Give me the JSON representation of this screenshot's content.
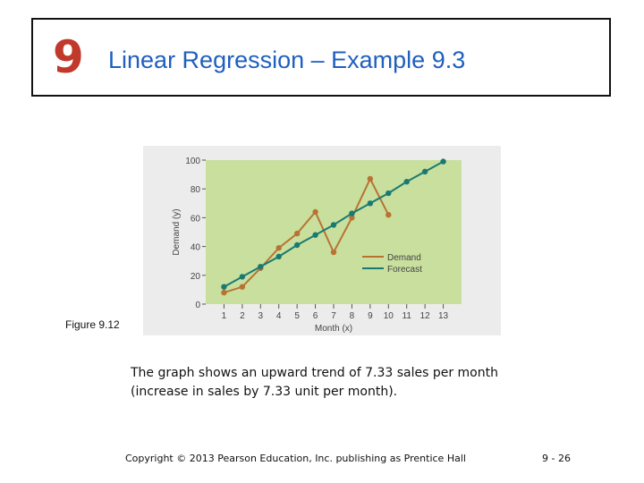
{
  "header": {
    "chapter_number": "9",
    "title": "Linear Regression – Example 9.3",
    "chapter_color": "#c0392b",
    "title_color": "#1f5fbf"
  },
  "figure_label": "Figure 9.12",
  "caption": {
    "line1": "The graph shows an upward trend of 7.33 sales per month",
    "line2": "(increase in sales by 7.33 unit per month)."
  },
  "footer": {
    "copyright": "Copyright © 2013 Pearson Education, Inc. publishing as Prentice Hall",
    "page_number": "9 - 26"
  },
  "chart_data": {
    "type": "line",
    "xlabel": "Month (x)",
    "ylabel": "Demand (y)",
    "x": [
      1,
      2,
      3,
      4,
      5,
      6,
      7,
      8,
      9,
      10,
      11,
      12,
      13
    ],
    "xlim": [
      0,
      14
    ],
    "ylim": [
      0,
      100
    ],
    "yticks": [
      0,
      20,
      40,
      60,
      80,
      100
    ],
    "grid": false,
    "legend_position": "right",
    "background": "#c8df9e",
    "series": [
      {
        "name": "Demand",
        "color": "#b87333",
        "x": [
          1,
          2,
          3,
          4,
          5,
          6,
          7,
          8,
          9,
          10
        ],
        "values": [
          8,
          12,
          25,
          39,
          49,
          64,
          36,
          60,
          87,
          62
        ]
      },
      {
        "name": "Forecast",
        "color": "#1a7a72",
        "x": [
          1,
          2,
          3,
          4,
          5,
          6,
          7,
          8,
          9,
          10,
          11,
          12,
          13
        ],
        "values": [
          12,
          19,
          26,
          33,
          41,
          48,
          55,
          63,
          70,
          77,
          85,
          92,
          99
        ]
      }
    ]
  }
}
